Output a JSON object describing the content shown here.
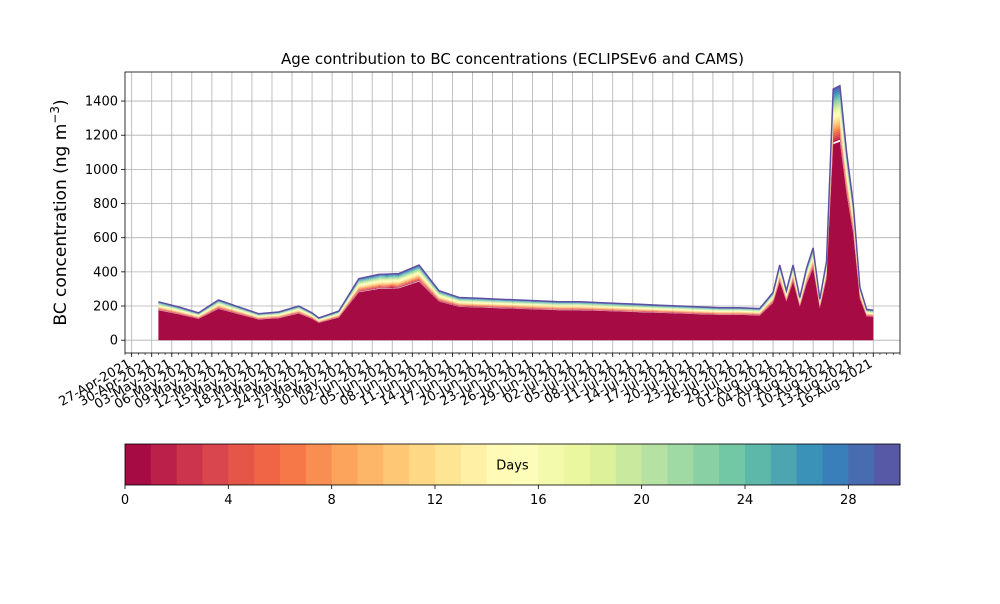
{
  "chart_data": {
    "type": "area",
    "title": "Age contribution to BC concentrations (ECLIPSEv6 and CAMS)",
    "ylabel_main": "BC concentration (ng m",
    "ylabel_sup": "−3",
    "ylabel_close": ")",
    "xlabel": "",
    "ylim": [
      -75,
      1570
    ],
    "yticks": [
      0,
      200,
      400,
      600,
      800,
      1000,
      1200,
      1400
    ],
    "grid": true,
    "x_axis": {
      "type": "date",
      "start": "2021-04-26",
      "end": "2021-08-20",
      "tick_labels": [
        "27-Apr-2021",
        "30-Apr-2021",
        "03-May-2021",
        "06-May-2021",
        "09-May-2021",
        "12-May-2021",
        "15-May-2021",
        "18-May-2021",
        "21-May-2021",
        "24-May-2021",
        "27-May-2021",
        "30-May-2021",
        "02-Jun-2021",
        "05-Jun-2021",
        "08-Jun-2021",
        "11-Jun-2021",
        "14-Jun-2021",
        "17-Jun-2021",
        "20-Jun-2021",
        "23-Jun-2021",
        "26-Jun-2021",
        "29-Jun-2021",
        "02-Jul-2021",
        "05-Jul-2021",
        "08-Jul-2021",
        "11-Jul-2021",
        "14-Jul-2021",
        "17-Jul-2021",
        "20-Jul-2021",
        "23-Jul-2021",
        "26-Jul-2021",
        "29-Jul-2021",
        "01-Aug-2021",
        "04-Aug-2021",
        "07-Aug-2021",
        "10-Aug-2021",
        "13-Aug-2021",
        "16-Aug-2021"
      ]
    },
    "series_total": {
      "name": "",
      "dates": [
        "2021-05-01",
        "2021-05-04",
        "2021-05-07",
        "2021-05-10",
        "2021-05-13",
        "2021-05-16",
        "2021-05-19",
        "2021-05-22",
        "2021-05-24",
        "2021-05-25",
        "2021-05-28",
        "2021-05-31",
        "2021-06-03",
        "2021-06-06",
        "2021-06-09",
        "2021-06-12",
        "2021-06-15",
        "2021-06-18",
        "2021-06-21",
        "2021-06-24",
        "2021-06-27",
        "2021-06-30",
        "2021-07-03",
        "2021-07-06",
        "2021-07-09",
        "2021-07-12",
        "2021-07-15",
        "2021-07-18",
        "2021-07-21",
        "2021-07-24",
        "2021-07-27",
        "2021-07-30",
        "2021-08-01",
        "2021-08-02",
        "2021-08-03",
        "2021-08-04",
        "2021-08-05",
        "2021-08-06",
        "2021-08-07",
        "2021-08-08",
        "2021-08-09",
        "2021-08-10",
        "2021-08-11",
        "2021-08-12",
        "2021-08-13",
        "2021-08-14",
        "2021-08-15",
        "2021-08-16"
      ],
      "values": [
        225,
        195,
        160,
        235,
        195,
        155,
        165,
        200,
        160,
        130,
        170,
        360,
        385,
        390,
        440,
        290,
        250,
        245,
        240,
        235,
        230,
        225,
        225,
        220,
        215,
        210,
        205,
        200,
        195,
        190,
        190,
        185,
        280,
        440,
        290,
        440,
        250,
        420,
        540,
        240,
        460,
        1470,
        1490,
        1100,
        800,
        310,
        180,
        175
      ]
    },
    "age_colorbar": {
      "label": "Days",
      "min": 0,
      "max": 30,
      "bins": 30,
      "ticks": [
        0,
        4,
        8,
        12,
        16,
        20,
        24,
        28
      ],
      "colormap": "Spectral"
    }
  }
}
